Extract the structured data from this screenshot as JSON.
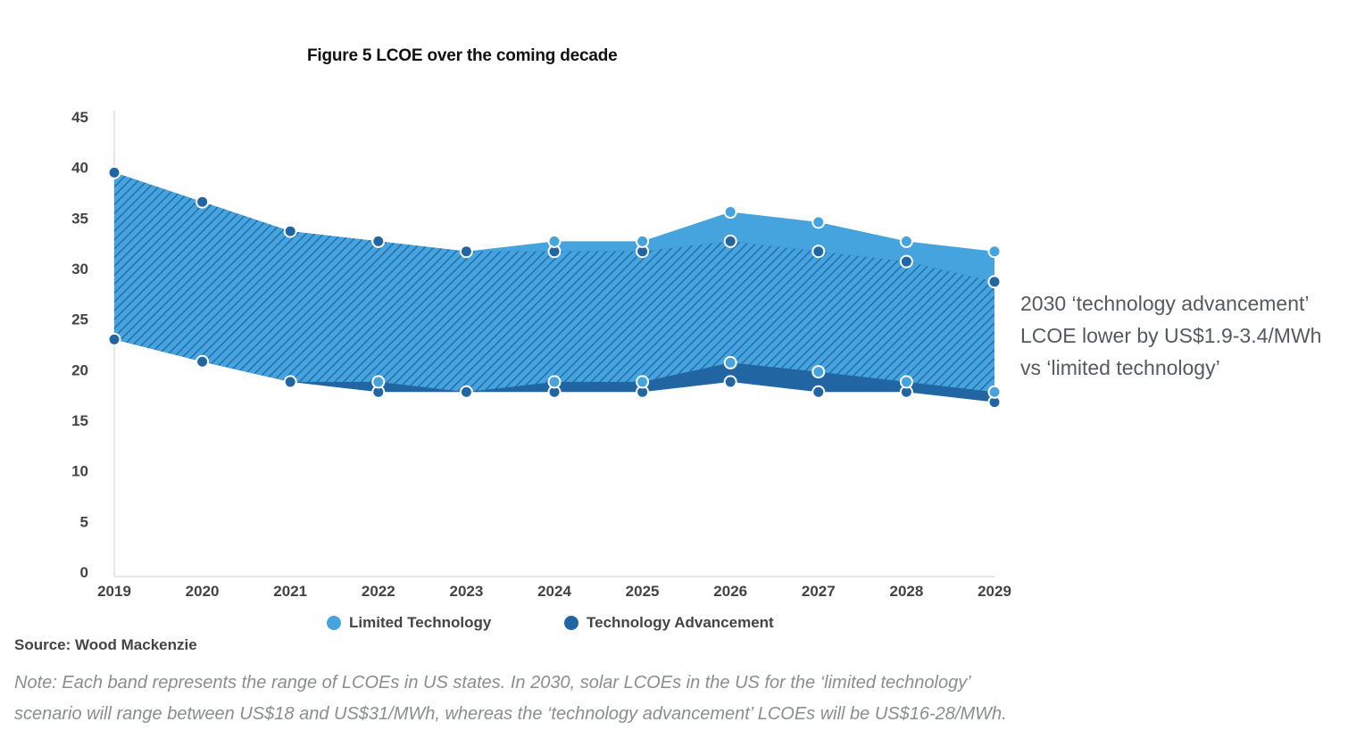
{
  "figure": {
    "title": "Figure 5  LCOE over the coming decade",
    "source": "Source: Wood Mackenzie",
    "note_lines": [
      "Note: Each band represents the range of LCOEs in US states. In 2030, solar LCOEs in the US for the ‘limited technology’",
      "scenario will range between US$18 and US$31/MWh, whereas the ‘technology advancement’ LCOEs will be US$16-28/MWh."
    ],
    "annotation_lines": [
      "2030 ‘technology advancement’",
      "LCOE lower by US$1.9-3.4/MWh",
      "vs ‘limited technology’"
    ]
  },
  "legend": {
    "limited": "Limited Technology",
    "advancement": "Technology Advancement"
  },
  "colors": {
    "limited": "#45a3dd",
    "advancement": "#2166a3",
    "axis": "#dddddd",
    "tick_text": "#444444"
  },
  "chart_data": {
    "type": "area",
    "title": "Figure 5  LCOE over the coming decade",
    "xlabel": "",
    "ylabel": "",
    "categories": [
      "2019",
      "2020",
      "2021",
      "2022",
      "2023",
      "2024",
      "2025",
      "2026",
      "2027",
      "2028",
      "2029"
    ],
    "y_ticks": [
      0,
      5,
      10,
      15,
      20,
      25,
      30,
      35,
      40,
      45
    ],
    "ylim": [
      0,
      45
    ],
    "grid": false,
    "legend_position": "bottom",
    "series": [
      {
        "name": "Limited Technology",
        "color": "#45a3dd",
        "high": [
          39.5,
          36.6,
          33.7,
          32.7,
          31.7,
          32.7,
          32.7,
          35.6,
          34.6,
          32.7,
          31.7
        ],
        "low": [
          23.0,
          20.8,
          18.8,
          18.8,
          17.8,
          18.8,
          18.8,
          20.7,
          19.8,
          18.8,
          17.8
        ]
      },
      {
        "name": "Technology Advancement",
        "color": "#2166a3",
        "high": [
          39.5,
          36.6,
          33.7,
          32.7,
          31.7,
          31.7,
          31.7,
          32.7,
          31.7,
          30.7,
          28.7
        ],
        "low": [
          23.0,
          20.8,
          18.8,
          17.8,
          17.8,
          17.8,
          17.8,
          18.8,
          17.8,
          17.8,
          16.8
        ]
      }
    ]
  }
}
